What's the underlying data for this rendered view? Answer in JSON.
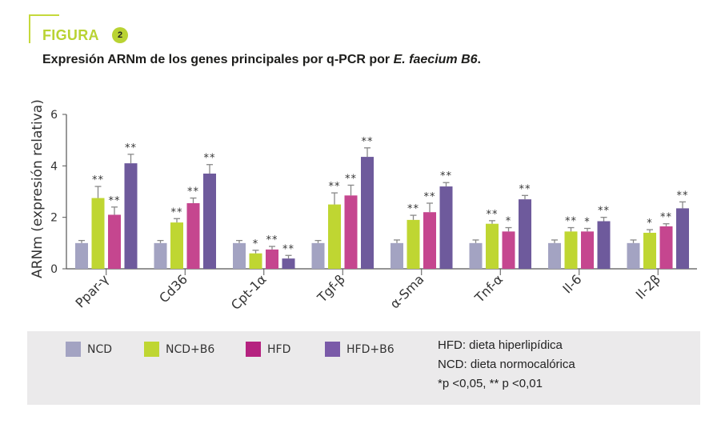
{
  "figure": {
    "label": "FIGURA",
    "number": "2",
    "title_main": "Expresión ARNm de los genes principales por q-PCR por ",
    "title_italic": "E. faecium B6",
    "title_end": "."
  },
  "colors": {
    "accent": "#b9d333",
    "NCD": "#a3a3c2",
    "NCD+B6": "#bfd632",
    "HFD": "#c5468f",
    "HFD+B6": "#6e5a9c",
    "axis": "#555555",
    "errorbar": "#888888"
  },
  "legend": {
    "items": [
      {
        "label": "NCD",
        "color": "#a3a3c2"
      },
      {
        "label": "NCD+B6",
        "color": "#bfd632"
      },
      {
        "label": "HFD",
        "color": "#b5227f"
      },
      {
        "label": "HFD+B6",
        "color": "#7a5aa8"
      }
    ],
    "notes": [
      "HFD: dieta hiperlipídica",
      "NCD: dieta normocalórica",
      "*p <0,05, ** p <0,01"
    ]
  },
  "chart_data": {
    "type": "bar",
    "title": "Expresión ARNm de los genes principales por q-PCR por E. faecium B6.",
    "xlabel": "",
    "ylabel": "ARNm (expresión relativa)",
    "ylim": [
      0,
      6
    ],
    "yticks": [
      0,
      2,
      4,
      6
    ],
    "grid": false,
    "legend_position": "bottom",
    "categories": [
      "Ppar-γ",
      "Cd36",
      "Cpt-1α",
      "Tgf-β",
      "α-Sma",
      "Tnf-α",
      "Il-6",
      "Il-2β"
    ],
    "series": [
      {
        "name": "NCD",
        "values": [
          1.0,
          1.0,
          1.0,
          1.0,
          1.0,
          1.0,
          1.0,
          1.0
        ],
        "errors": [
          0.1,
          0.1,
          0.1,
          0.1,
          0.12,
          0.12,
          0.12,
          0.12
        ],
        "significance": [
          "",
          "",
          "",
          "",
          "",
          "",
          "",
          ""
        ]
      },
      {
        "name": "NCD+B6",
        "values": [
          2.75,
          1.8,
          0.6,
          2.5,
          1.9,
          1.75,
          1.45,
          1.4
        ],
        "errors": [
          0.45,
          0.15,
          0.12,
          0.45,
          0.18,
          0.12,
          0.15,
          0.12
        ],
        "significance": [
          "**",
          "**",
          "*",
          "**",
          "**",
          "**",
          "**",
          "*"
        ]
      },
      {
        "name": "HFD",
        "values": [
          2.1,
          2.55,
          0.75,
          2.85,
          2.2,
          1.45,
          1.45,
          1.65
        ],
        "errors": [
          0.3,
          0.2,
          0.12,
          0.4,
          0.35,
          0.15,
          0.12,
          0.1
        ],
        "significance": [
          "**",
          "**",
          "**",
          "**",
          "**",
          "*",
          "*",
          "**"
        ]
      },
      {
        "name": "HFD+B6",
        "values": [
          4.1,
          3.7,
          0.4,
          4.35,
          3.2,
          2.7,
          1.85,
          2.35
        ],
        "errors": [
          0.35,
          0.35,
          0.12,
          0.35,
          0.15,
          0.15,
          0.15,
          0.25
        ],
        "significance": [
          "**",
          "**",
          "**",
          "**",
          "**",
          "**",
          "**",
          "**"
        ]
      }
    ]
  }
}
